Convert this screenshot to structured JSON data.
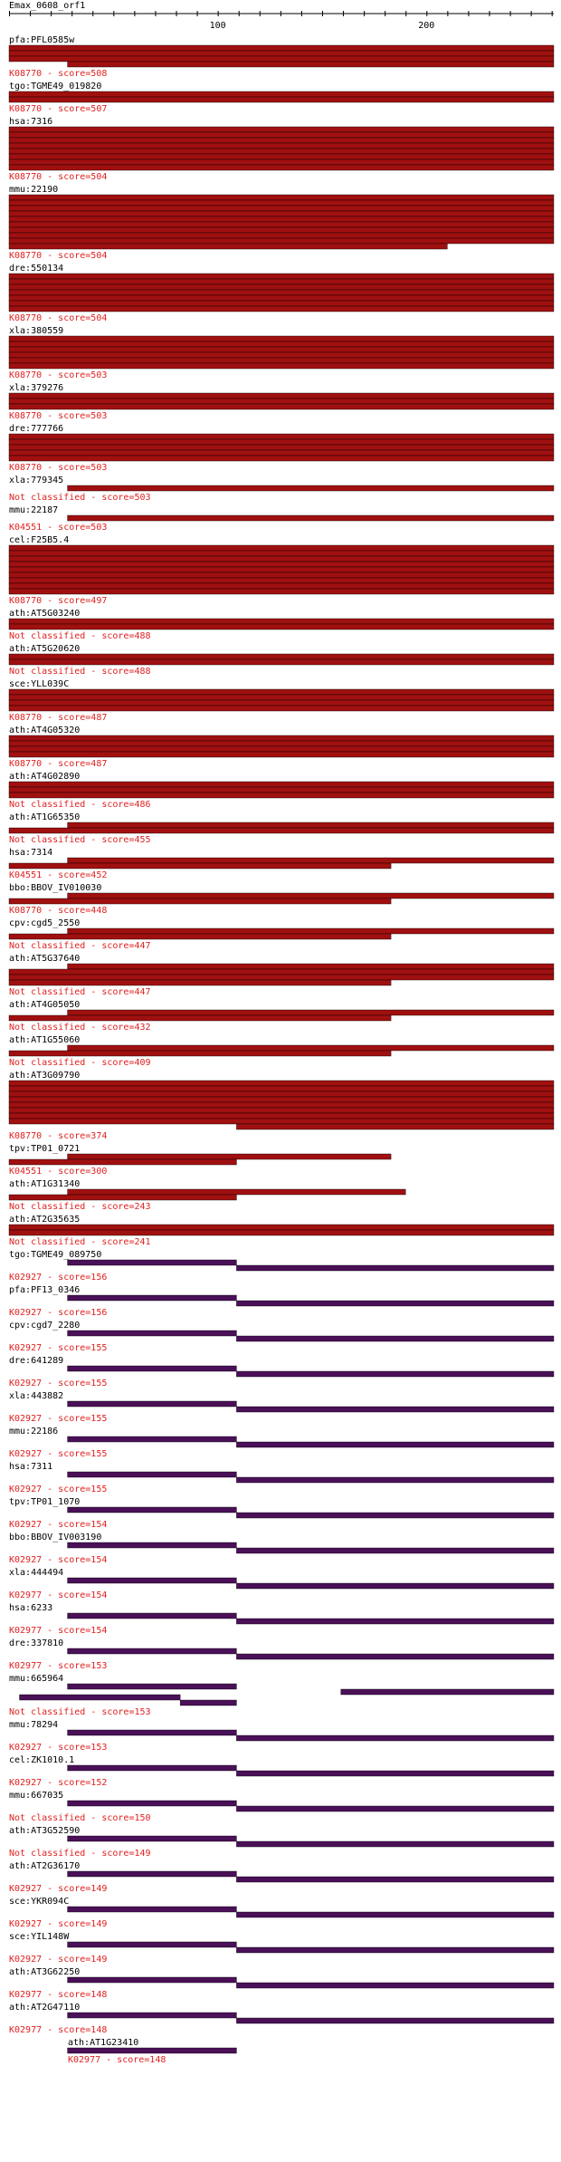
{
  "title": "Emax_0608_orf1",
  "axis": {
    "max": 261,
    "ticks": [
      100,
      200
    ]
  },
  "colors": {
    "text": "#000000",
    "label": "#e02020",
    "red": "#a01010",
    "purple": "#4a1058"
  },
  "hits": [
    {
      "name": "pfa:PFL0585w",
      "label": "K08770 - score=508",
      "color": "red",
      "bars": [
        [
          0,
          261
        ],
        [
          0,
          261
        ],
        [
          0,
          261
        ],
        [
          28,
          261
        ]
      ]
    },
    {
      "name": "tgo:TGME49_019820",
      "label": "K08770 - score=507",
      "color": "red",
      "bars": [
        [
          0,
          261
        ],
        [
          0,
          261
        ]
      ]
    },
    {
      "name": "hsa:7316",
      "label": "K08770 - score=504",
      "color": "red",
      "bars": [
        [
          0,
          261
        ],
        [
          0,
          261
        ],
        [
          0,
          261
        ],
        [
          0,
          261
        ],
        [
          0,
          261
        ],
        [
          0,
          261
        ],
        [
          0,
          261
        ],
        [
          0,
          261
        ]
      ]
    },
    {
      "name": "mmu:22190",
      "label": "K08770 - score=504",
      "color": "red",
      "bars": [
        [
          0,
          261
        ],
        [
          0,
          261
        ],
        [
          0,
          261
        ],
        [
          0,
          261
        ],
        [
          0,
          261
        ],
        [
          0,
          261
        ],
        [
          0,
          261
        ],
        [
          0,
          261
        ],
        [
          0,
          261
        ],
        [
          0,
          210
        ]
      ]
    },
    {
      "name": "dre:550134",
      "label": "K08770 - score=504",
      "color": "red",
      "bars": [
        [
          0,
          261
        ],
        [
          0,
          261
        ],
        [
          0,
          261
        ],
        [
          0,
          261
        ],
        [
          0,
          261
        ],
        [
          0,
          261
        ],
        [
          0,
          261
        ]
      ]
    },
    {
      "name": "xla:380559",
      "label": "K08770 - score=503",
      "color": "red",
      "bars": [
        [
          0,
          261
        ],
        [
          0,
          261
        ],
        [
          0,
          261
        ],
        [
          0,
          261
        ],
        [
          0,
          261
        ],
        [
          0,
          261
        ]
      ]
    },
    {
      "name": "xla:379276",
      "label": "K08770 - score=503",
      "color": "red",
      "bars": [
        [
          0,
          261
        ],
        [
          0,
          261
        ],
        [
          0,
          261
        ]
      ]
    },
    {
      "name": "dre:777766",
      "label": "K08770 - score=503",
      "color": "red",
      "bars": [
        [
          0,
          261
        ],
        [
          0,
          261
        ],
        [
          0,
          261
        ],
        [
          0,
          261
        ],
        [
          0,
          261
        ]
      ]
    },
    {
      "name": "xla:779345",
      "label": "Not classified - score=503",
      "color": "red",
      "bars": [
        [
          28,
          261
        ]
      ]
    },
    {
      "name": "mmu:22187",
      "label": "K04551 - score=503",
      "color": "red",
      "bars": [
        [
          28,
          261
        ]
      ]
    },
    {
      "name": "cel:F25B5.4",
      "label": "K08770 - score=497",
      "color": "red",
      "bars": [
        [
          0,
          261
        ],
        [
          0,
          261
        ],
        [
          0,
          261
        ],
        [
          0,
          261
        ],
        [
          0,
          261
        ],
        [
          0,
          261
        ],
        [
          0,
          261
        ],
        [
          0,
          261
        ],
        [
          0,
          261
        ]
      ]
    },
    {
      "name": "ath:AT5G03240",
      "label": "Not classified - score=488",
      "color": "red",
      "bars": [
        [
          0,
          261
        ],
        [
          0,
          261
        ]
      ]
    },
    {
      "name": "ath:AT5G20620",
      "label": "Not classified - score=488",
      "color": "red",
      "bars": [
        [
          0,
          261
        ],
        [
          0,
          261
        ]
      ]
    },
    {
      "name": "sce:YLL039C",
      "label": "K08770 - score=487",
      "color": "red",
      "bars": [
        [
          0,
          261
        ],
        [
          0,
          261
        ],
        [
          0,
          261
        ],
        [
          0,
          261
        ]
      ]
    },
    {
      "name": "ath:AT4G05320",
      "label": "K08770 - score=487",
      "color": "red",
      "bars": [
        [
          0,
          261
        ],
        [
          0,
          261
        ],
        [
          0,
          261
        ],
        [
          0,
          261
        ]
      ]
    },
    {
      "name": "ath:AT4G02890",
      "label": "Not classified - score=486",
      "color": "red",
      "bars": [
        [
          0,
          261
        ],
        [
          0,
          261
        ],
        [
          0,
          261
        ]
      ]
    },
    {
      "name": "ath:AT1G65350",
      "label": "Not classified - score=455",
      "color": "red",
      "bars": [
        [
          28,
          261
        ],
        [
          0,
          261
        ]
      ]
    },
    {
      "name": "hsa:7314",
      "label": "K04551 - score=452",
      "color": "red",
      "bars": [
        [
          28,
          261
        ],
        [
          0,
          183
        ]
      ]
    },
    {
      "name": "bbo:BBOV_IV010030",
      "label": "K08770 - score=448",
      "color": "red",
      "bars": [
        [
          28,
          261
        ],
        [
          0,
          183
        ]
      ]
    },
    {
      "name": "cpv:cgd5_2550",
      "label": "Not classified - score=447",
      "color": "red",
      "bars": [
        [
          28,
          261
        ],
        [
          0,
          183
        ]
      ]
    },
    {
      "name": "ath:AT5G37640",
      "label": "Not classified - score=447",
      "color": "red",
      "bars": [
        [
          28,
          261
        ],
        [
          0,
          261
        ],
        [
          0,
          261
        ],
        [
          0,
          183
        ]
      ]
    },
    {
      "name": "ath:AT4G05050",
      "label": "Not classified - score=432",
      "color": "red",
      "bars": [
        [
          28,
          261
        ],
        [
          0,
          183
        ]
      ]
    },
    {
      "name": "ath:AT1G55060",
      "label": "Not classified - score=409",
      "color": "red",
      "bars": [
        [
          28,
          261
        ],
        [
          0,
          183
        ]
      ]
    },
    {
      "name": "ath:AT3G09790",
      "label": "K08770 - score=374",
      "color": "red",
      "bars": [
        [
          0,
          261
        ],
        [
          0,
          261
        ],
        [
          0,
          261
        ],
        [
          0,
          261
        ],
        [
          0,
          261
        ],
        [
          0,
          261
        ],
        [
          0,
          261
        ],
        [
          0,
          261
        ],
        [
          109,
          261
        ]
      ]
    },
    {
      "name": "tpv:TP01_0721",
      "label": "K04551 - score=300",
      "color": "red",
      "bars": [
        [
          28,
          183
        ],
        [
          0,
          109
        ]
      ]
    },
    {
      "name": "ath:AT1G31340",
      "label": "Not classified - score=243",
      "color": "red",
      "bars": [
        [
          28,
          190
        ],
        [
          0,
          109
        ]
      ]
    },
    {
      "name": "ath:AT2G35635",
      "label": "Not classified - score=241",
      "color": "red",
      "bars": [
        [
          0,
          261
        ],
        [
          0,
          261
        ]
      ]
    },
    {
      "name": "tgo:TGME49_089750",
      "label": "K02927 - score=156",
      "color": "purple",
      "bars": [
        [
          28,
          109
        ],
        [
          109,
          261
        ]
      ]
    },
    {
      "name": "pfa:PF13_0346",
      "label": "K02927 - score=156",
      "color": "purple",
      "bars": [
        [
          28,
          109
        ],
        [
          109,
          261
        ]
      ]
    },
    {
      "name": "cpv:cgd7_2280",
      "label": "K02927 - score=155",
      "color": "purple",
      "bars": [
        [
          28,
          109
        ],
        [
          109,
          261
        ]
      ]
    },
    {
      "name": "dre:641289",
      "label": "K02927 - score=155",
      "color": "purple",
      "bars": [
        [
          28,
          109
        ],
        [
          109,
          261
        ]
      ]
    },
    {
      "name": "xla:443882",
      "label": "K02927 - score=155",
      "color": "purple",
      "bars": [
        [
          28,
          109
        ],
        [
          109,
          261
        ]
      ]
    },
    {
      "name": "mmu:22186",
      "label": "K02927 - score=155",
      "color": "purple",
      "bars": [
        [
          28,
          109
        ],
        [
          109,
          261
        ]
      ]
    },
    {
      "name": "hsa:7311",
      "label": "K02927 - score=155",
      "color": "purple",
      "bars": [
        [
          28,
          109
        ],
        [
          109,
          261
        ]
      ]
    },
    {
      "name": "tpv:TP01_1070",
      "label": "K02927 - score=154",
      "color": "purple",
      "bars": [
        [
          28,
          109
        ],
        [
          109,
          261
        ]
      ]
    },
    {
      "name": "bbo:BBOV_IV003190",
      "label": "K02927 - score=154",
      "color": "purple",
      "bars": [
        [
          28,
          109
        ],
        [
          109,
          261
        ]
      ]
    },
    {
      "name": "xla:444494",
      "label": "K02977 - score=154",
      "color": "purple",
      "bars": [
        [
          28,
          109
        ],
        [
          109,
          261
        ]
      ]
    },
    {
      "name": "hsa:6233",
      "label": "K02977 - score=154",
      "color": "purple",
      "bars": [
        [
          28,
          109
        ],
        [
          109,
          261
        ]
      ]
    },
    {
      "name": "dre:337810",
      "label": "K02977 - score=153",
      "color": "purple",
      "bars": [
        [
          28,
          109
        ],
        [
          109,
          261
        ]
      ]
    },
    {
      "name": "mmu:665964",
      "label": "Not classified - score=153",
      "color": "purple",
      "bars": [
        [
          28,
          109
        ],
        [
          159,
          261
        ],
        [
          5,
          82
        ],
        [
          82,
          109
        ]
      ]
    },
    {
      "name": "mmu:78294",
      "label": "K02927 - score=153",
      "color": "purple",
      "bars": [
        [
          28,
          109
        ],
        [
          109,
          261
        ]
      ]
    },
    {
      "name": "cel:ZK1010.1",
      "label": "K02927 - score=152",
      "color": "purple",
      "bars": [
        [
          28,
          109
        ],
        [
          109,
          261
        ]
      ]
    },
    {
      "name": "mmu:667035",
      "label": "Not classified - score=150",
      "color": "purple",
      "bars": [
        [
          28,
          109
        ],
        [
          109,
          261
        ]
      ]
    },
    {
      "name": "ath:AT3G52590",
      "label": "Not classified - score=149",
      "color": "purple",
      "bars": [
        [
          28,
          109
        ],
        [
          109,
          261
        ]
      ]
    },
    {
      "name": "ath:AT2G36170",
      "label": "K02927 - score=149",
      "color": "purple",
      "bars": [
        [
          28,
          109
        ],
        [
          109,
          261
        ]
      ]
    },
    {
      "name": "sce:YKR094C",
      "label": "K02927 - score=149",
      "color": "purple",
      "bars": [
        [
          28,
          109
        ],
        [
          109,
          261
        ]
      ]
    },
    {
      "name": "sce:YIL148W",
      "label": "K02927 - score=149",
      "color": "purple",
      "bars": [
        [
          28,
          109
        ],
        [
          109,
          261
        ]
      ]
    },
    {
      "name": "ath:AT3G62250",
      "label": "K02977 - score=148",
      "color": "purple",
      "bars": [
        [
          28,
          109
        ],
        [
          109,
          261
        ]
      ]
    },
    {
      "name": "ath:AT2G47110",
      "label": "K02977 - score=148",
      "color": "purple",
      "bars": [
        [
          28,
          109
        ],
        [
          109,
          261
        ]
      ]
    },
    {
      "name": "ath:AT1G23410",
      "label": "K02977 - score=148",
      "color": "purple",
      "bars": [
        [
          28,
          109
        ]
      ],
      "indent": true
    }
  ]
}
